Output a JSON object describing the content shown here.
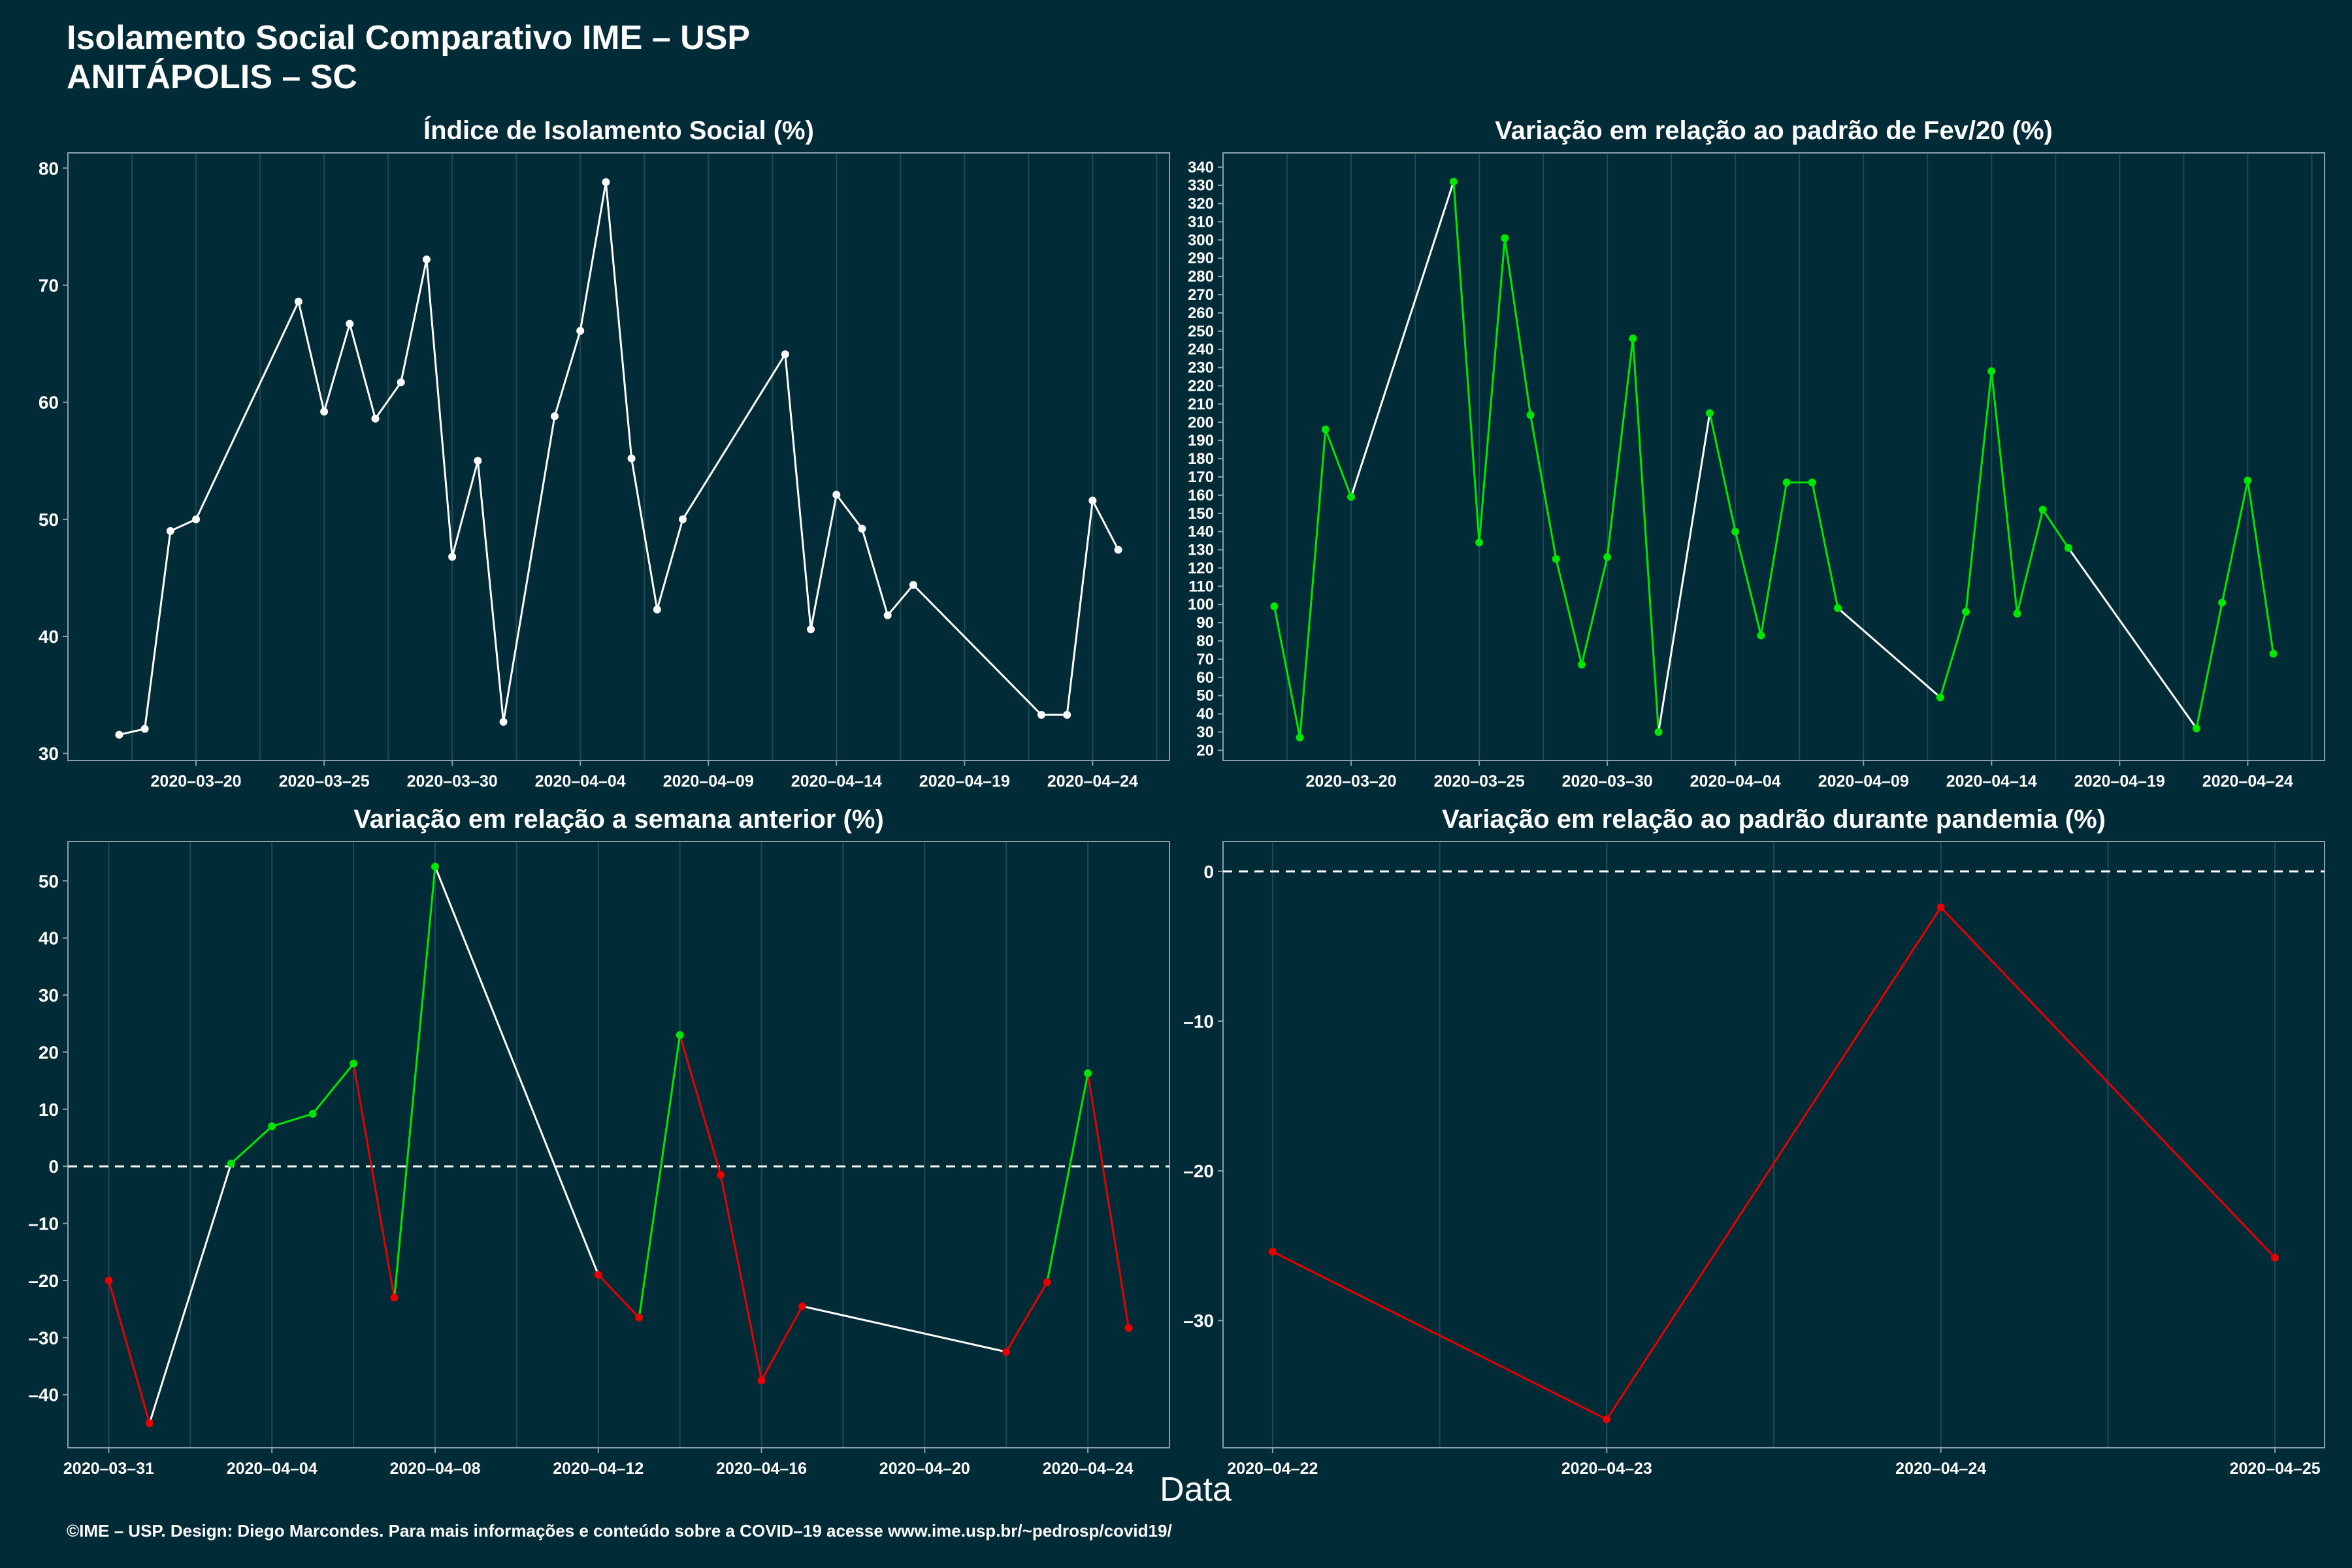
{
  "header": {
    "title": "Isolamento Social Comparativo IME – USP",
    "subtitle": "ANITÁPOLIS – SC"
  },
  "x_axis_label": "Data",
  "footer": "©IME – USP. Design: Diego Marcondes. Para mais informações e conteúdo sobre a COVID–19 acesse www.ime.usp.br/~pedrosp/covid19/",
  "colors": {
    "background": "#022b38",
    "neutral_line": "#ffffff",
    "increase": "#00e600",
    "decrease": "#e60000"
  },
  "chart_data": [
    {
      "type": "line",
      "title": "Índice de Isolamento Social (%)",
      "x": [
        "2020-03-17",
        "2020-03-18",
        "2020-03-19",
        "2020-03-20",
        "2020-03-24",
        "2020-03-25",
        "2020-03-26",
        "2020-03-27",
        "2020-03-28",
        "2020-03-29",
        "2020-03-30",
        "2020-03-31",
        "2020-04-01",
        "2020-04-03",
        "2020-04-04",
        "2020-04-05",
        "2020-04-06",
        "2020-04-07",
        "2020-04-08",
        "2020-04-12",
        "2020-04-13",
        "2020-04-14",
        "2020-04-15",
        "2020-04-16",
        "2020-04-17",
        "2020-04-22",
        "2020-04-23",
        "2020-04-24",
        "2020-04-25"
      ],
      "y": [
        31.6,
        32.1,
        49.0,
        50.0,
        68.6,
        59.2,
        66.7,
        58.6,
        61.7,
        72.2,
        46.8,
        55.0,
        32.7,
        58.8,
        66.1,
        78.8,
        55.2,
        42.3,
        50.0,
        64.1,
        40.6,
        52.1,
        49.2,
        41.8,
        44.4,
        33.3,
        33.3,
        51.6,
        47.4
      ],
      "xticks": [
        "2020–03–20",
        "2020–03–25",
        "2020–03–30",
        "2020–04–04",
        "2020–04–09",
        "2020–04–14",
        "2020–04–19",
        "2020–04–24"
      ],
      "yticks": [
        30,
        40,
        50,
        60,
        70,
        80
      ],
      "ylim": [
        29.4,
        81.3
      ],
      "series_color": "#ffffff"
    },
    {
      "type": "line",
      "title": "Variação em relação ao padrão de Fev/20 (%)",
      "x": [
        "2020-03-17",
        "2020-03-18",
        "2020-03-19",
        "2020-03-20",
        "2020-03-24",
        "2020-03-25",
        "2020-03-26",
        "2020-03-27",
        "2020-03-28",
        "2020-03-29",
        "2020-03-30",
        "2020-03-31",
        "2020-04-01",
        "2020-04-03",
        "2020-04-04",
        "2020-04-05",
        "2020-04-06",
        "2020-04-07",
        "2020-04-08",
        "2020-04-12",
        "2020-04-13",
        "2020-04-14",
        "2020-04-15",
        "2020-04-16",
        "2020-04-17",
        "2020-04-22",
        "2020-04-23",
        "2020-04-24",
        "2020-04-25"
      ],
      "y": [
        99,
        27,
        196,
        159,
        332,
        134,
        301,
        204,
        125,
        67,
        126,
        246,
        30,
        205,
        140,
        83,
        167,
        167,
        98,
        49,
        96,
        228,
        95,
        152,
        131,
        32,
        101,
        168,
        73
      ],
      "segment_colors": [
        "#00e600",
        "#00e600",
        "#00e600",
        "#ffffff",
        "#00e600",
        "#00e600",
        "#00e600",
        "#00e600",
        "#00e600",
        "#00e600",
        "#00e600",
        "#00e600",
        "#ffffff",
        "#00e600",
        "#00e600",
        "#00e600",
        "#00e600",
        "#00e600",
        "#ffffff",
        "#00e600",
        "#00e600",
        "#00e600",
        "#00e600",
        "#00e600",
        "#ffffff",
        "#00e600",
        "#00e600",
        "#00e600"
      ],
      "point_color": "#00e600",
      "xticks": [
        "2020–03–20",
        "2020–03–25",
        "2020–03–30",
        "2020–04–04",
        "2020–04–09",
        "2020–04–14",
        "2020–04–19",
        "2020–04–24"
      ],
      "yticks": [
        20,
        30,
        40,
        50,
        60,
        70,
        80,
        90,
        100,
        110,
        120,
        130,
        140,
        150,
        160,
        170,
        180,
        190,
        200,
        210,
        220,
        230,
        240,
        250,
        260,
        270,
        280,
        290,
        300,
        310,
        320,
        330,
        340
      ],
      "ylim": [
        14.4,
        347.8
      ]
    },
    {
      "type": "line",
      "title": "Variação em relação a semana anterior (%)",
      "x": [
        "2020-03-31",
        "2020-04-01",
        "2020-04-03",
        "2020-04-04",
        "2020-04-05",
        "2020-04-06",
        "2020-04-07",
        "2020-04-08",
        "2020-04-12",
        "2020-04-13",
        "2020-04-14",
        "2020-04-15",
        "2020-04-16",
        "2020-04-17",
        "2020-04-22",
        "2020-04-23",
        "2020-04-24",
        "2020-04-25"
      ],
      "y": [
        -20,
        -45,
        0.5,
        7,
        9.2,
        18,
        -23,
        52.5,
        -19,
        -26.5,
        23,
        -1.5,
        -37.5,
        -24.5,
        -32.5,
        -20.3,
        16.3,
        -28.3
      ],
      "point_colors": [
        "#e60000",
        "#e60000",
        "#00e600",
        "#00e600",
        "#00e600",
        "#00e600",
        "#e60000",
        "#00e600",
        "#e60000",
        "#e60000",
        "#00e600",
        "#e60000",
        "#e60000",
        "#e60000",
        "#e60000",
        "#e60000",
        "#00e600",
        "#e60000"
      ],
      "segment_colors": [
        "#e60000",
        "#ffffff",
        "#00e600",
        "#00e600",
        "#00e600",
        "#e60000",
        "#00e600",
        "#ffffff",
        "#e60000",
        "#00e600",
        "#e60000",
        "#e60000",
        "#e60000",
        "#ffffff",
        "#e60000",
        "#00e600",
        "#e60000"
      ],
      "reference_line": 0,
      "xticks": [
        "2020–03–31",
        "2020–04–04",
        "2020–04–08",
        "2020–04–12",
        "2020–04–16",
        "2020–04–20",
        "2020–04–24"
      ],
      "yticks": [
        -40,
        -30,
        -20,
        -10,
        0,
        10,
        20,
        30,
        40,
        50
      ],
      "ylim": [
        -49.3,
        56.9
      ]
    },
    {
      "type": "line",
      "title": "Variação em relação ao padrão durante pandemia (%)",
      "x": [
        "2020-04-22",
        "2020-04-23",
        "2020-04-24",
        "2020-04-25"
      ],
      "y": [
        -25.4,
        -36.6,
        -2.4,
        -25.8
      ],
      "series_color": "#e60000",
      "reference_line": 0,
      "xticks": [
        "2020–04–22",
        "2020–04–23",
        "2020–04–24",
        "2020–04–25"
      ],
      "yticks": [
        -30,
        -20,
        -10,
        0
      ],
      "ylim": [
        -38.5,
        2.0
      ]
    }
  ]
}
